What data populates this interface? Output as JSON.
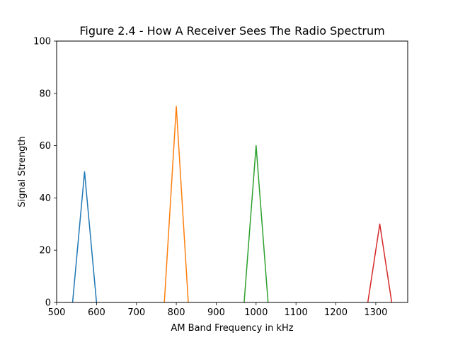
{
  "chart_data": {
    "type": "line",
    "title": "Figure 2.4 - How A Receiver Sees The Radio Spectrum",
    "xlabel": "AM Band Frequency in kHz",
    "ylabel": "Signal Strength",
    "xlim": [
      500,
      1380
    ],
    "ylim": [
      0,
      100
    ],
    "xticks": [
      "500",
      "600",
      "700",
      "800",
      "900",
      "1000",
      "1100",
      "1200",
      "1300"
    ],
    "yticks": [
      "0",
      "20",
      "40",
      "60",
      "80",
      "100"
    ],
    "grid": false,
    "legend": "none",
    "series": [
      {
        "color": "#1f77b4",
        "x": [
          540,
          570,
          600
        ],
        "y": [
          0,
          50,
          0
        ]
      },
      {
        "color": "#ff7f0e",
        "x": [
          770,
          800,
          830
        ],
        "y": [
          0,
          75,
          0
        ]
      },
      {
        "color": "#2ca02c",
        "x": [
          970,
          1000,
          1030
        ],
        "y": [
          0,
          60,
          0
        ]
      },
      {
        "color": "#d62728",
        "x": [
          1280,
          1310,
          1340
        ],
        "y": [
          0,
          30,
          0
        ]
      }
    ]
  }
}
